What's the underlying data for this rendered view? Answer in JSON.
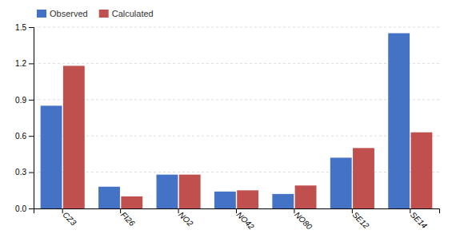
{
  "chart_data": {
    "type": "bar",
    "categories": [
      "CZ3",
      "FI26",
      "NO2",
      "NO42",
      "NO80",
      "SE12",
      "SE14"
    ],
    "series": [
      {
        "name": "Observed",
        "color": "#4472c4",
        "values": [
          0.85,
          0.18,
          0.28,
          0.14,
          0.12,
          0.42,
          1.45
        ]
      },
      {
        "name": "Calculated",
        "color": "#c0504d",
        "values": [
          1.18,
          0.1,
          0.28,
          0.15,
          0.19,
          0.5,
          0.63
        ]
      }
    ],
    "ylim": [
      0,
      1.5
    ],
    "yticks": [
      {
        "value": 0,
        "label": "0.0"
      },
      0.3,
      0.6,
      0.9,
      1.2,
      1.5
    ],
    "grid": true,
    "legend": "upper left"
  }
}
